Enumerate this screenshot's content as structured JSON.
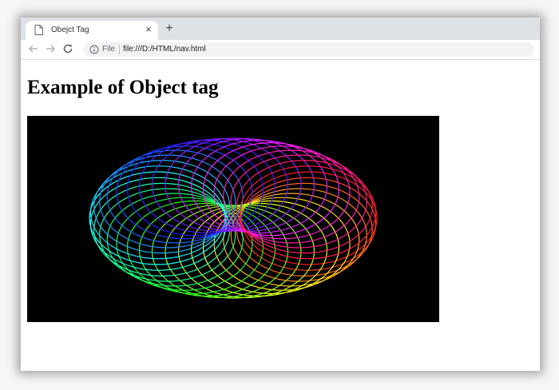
{
  "browser": {
    "tab": {
      "title": "Obejct Tag",
      "close_label": "×",
      "icon": "page-icon"
    },
    "new_tab_label": "+",
    "nav": {
      "back_icon": "arrow-left-icon",
      "forward_icon": "arrow-right-icon",
      "reload_icon": "reload-icon"
    },
    "address_bar": {
      "scheme_label": "File",
      "url": "file:///D:/HTML/nav.html",
      "info_icon": "info-icon"
    }
  },
  "page": {
    "heading": "Example of Object tag",
    "embedded_object": {
      "content": "spirograph-animation",
      "background": "#000000"
    }
  }
}
